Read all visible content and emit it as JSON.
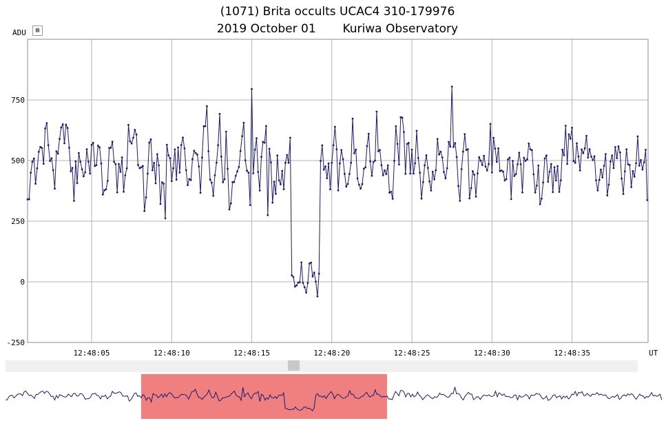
{
  "title": {
    "line1": "(1071) Brita occults UCAC4 310-179976",
    "date": "2019 October 01",
    "observatory": "Kuriwa Observatory"
  },
  "y_unit_label": "ADU",
  "x_unit_label": "UT",
  "colors": {
    "trace": "#1a1a6e",
    "grid": "#b4b4b4",
    "overview_highlight": "#f08080",
    "scrollbar_thumb": "#c9c9c9"
  },
  "chart_data": {
    "type": "line",
    "title": "(1071) Brita occults UCAC4 310-179976  2019 October 01  Kuriwa Observatory",
    "ylabel": "ADU",
    "xlabel": "UT",
    "ylim": [
      -250,
      1000
    ],
    "y_ticks": [
      -250,
      0,
      250,
      500,
      750
    ],
    "y_tick_labels": [
      "-250",
      "0",
      "250",
      "500",
      "750"
    ],
    "x_ticks": [
      "12:48:05",
      "12:48:10",
      "12:48:15",
      "12:48:20",
      "12:48:25",
      "12:48:30",
      "12:48:35"
    ],
    "x_range_seconds_after_12_48_00": [
      1.0,
      39.75
    ],
    "sample_interval_s": 0.1,
    "seed": 20191001,
    "baseline_mean": 495,
    "baseline_noise": 70,
    "event": {
      "start": 17.45,
      "end": 19.3,
      "level": 0,
      "noise": 30
    },
    "highlights": [
      {
        "x": 1.05,
        "y": 340
      },
      {
        "x": 15.0,
        "y": 795
      },
      {
        "x": 27.55,
        "y": 805
      },
      {
        "x": 15.95,
        "y": 275
      },
      {
        "x": 9.6,
        "y": 262
      },
      {
        "x": 19.1,
        "y": -60
      },
      {
        "x": 17.55,
        "y": 20
      },
      {
        "x": 18.1,
        "y": 80
      }
    ],
    "grid": true,
    "legend": "none",
    "overview_window": [
      9.0,
      23.5
    ]
  }
}
